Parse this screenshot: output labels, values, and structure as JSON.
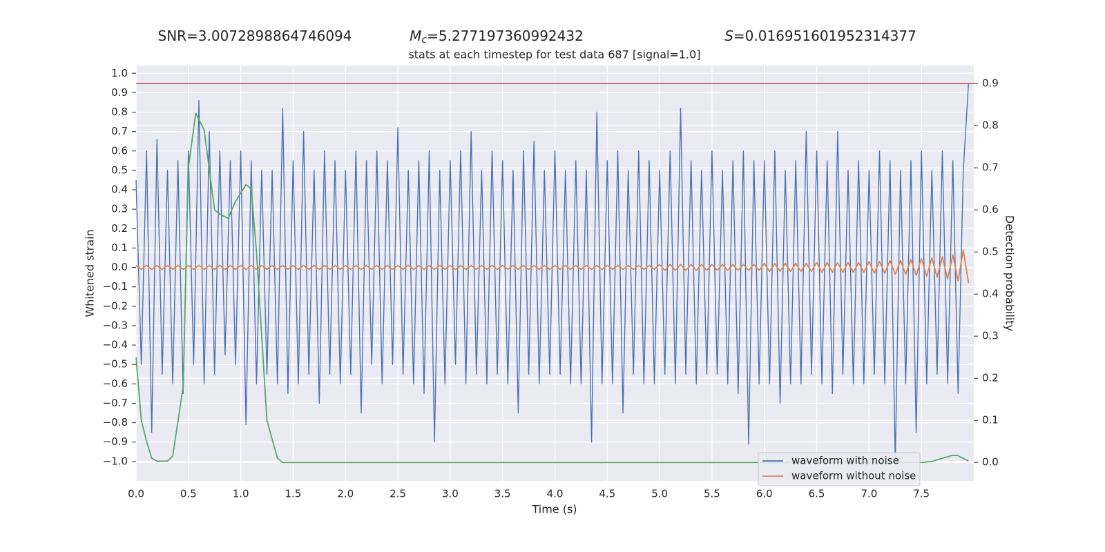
{
  "chart_data": {
    "type": "line",
    "header": [
      {
        "text": "SNR=3.0072898864746094"
      },
      {
        "symbol": "M",
        "subscript": "c",
        "text": "=5.277197360992432"
      },
      {
        "symbol": "S",
        "text": "=0.016951601952314377"
      }
    ],
    "title": "stats at each timestep for test data 687 [signal=1.0]",
    "x_label": "Time (s)",
    "y_label": "Whitened strain",
    "y2_label": "Detection probability",
    "grid": true,
    "legend_loc": "lower right",
    "xlim": [
      0,
      8.0
    ],
    "ylim": [
      -1.1,
      1.04
    ],
    "y2lim": [
      -0.044,
      0.943
    ],
    "xticks": [
      {
        "value": 0,
        "label": "0.0"
      },
      0.5,
      {
        "value": 1,
        "label": "1.0"
      },
      1.5,
      {
        "value": 2,
        "label": "2.0"
      },
      2.5,
      {
        "value": 3,
        "label": "3.0"
      },
      3.5,
      {
        "value": 4,
        "label": "4.0"
      },
      4.5,
      {
        "value": 5,
        "label": "5.0"
      },
      5.5,
      {
        "value": 6,
        "label": "6.0"
      },
      6.5,
      {
        "value": 7,
        "label": "7.0"
      },
      7.5
    ],
    "yticks": [
      {
        "value": -1,
        "label": "−1.0"
      },
      {
        "value": -0.9,
        "label": "−0.9"
      },
      {
        "value": -0.8,
        "label": "−0.8"
      },
      {
        "value": -0.7,
        "label": "−0.7"
      },
      {
        "value": -0.6,
        "label": "−0.6"
      },
      {
        "value": -0.5,
        "label": "−0.5"
      },
      {
        "value": -0.4,
        "label": "−0.4"
      },
      {
        "value": -0.3,
        "label": "−0.3"
      },
      {
        "value": -0.2,
        "label": "−0.2"
      },
      {
        "value": -0.1,
        "label": "−0.1"
      },
      {
        "value": 0,
        "label": "0.0"
      },
      0.1,
      0.2,
      0.3,
      0.4,
      0.5,
      0.6,
      0.7,
      0.8,
      0.9,
      {
        "value": 1,
        "label": "1.0"
      }
    ],
    "y2ticks": [
      {
        "value": 0,
        "label": "0.0"
      },
      0.1,
      0.2,
      0.3,
      0.4,
      0.5,
      0.6,
      0.7,
      0.8,
      0.9
    ],
    "threshold": {
      "value": 0.9,
      "axis": "y2",
      "color": "#c44e52"
    },
    "x": [
      0,
      0.05,
      0.1,
      0.15,
      0.2,
      0.25,
      0.3,
      0.35,
      0.4,
      0.45,
      0.5,
      0.55,
      0.6,
      0.65,
      0.7,
      0.75,
      0.8,
      0.85,
      0.9,
      0.95,
      1,
      1.05,
      1.1,
      1.15,
      1.2,
      1.25,
      1.3,
      1.35,
      1.4,
      1.45,
      1.5,
      1.55,
      1.6,
      1.65,
      1.7,
      1.75,
      1.8,
      1.85,
      1.9,
      1.95,
      2,
      2.05,
      2.1,
      2.15,
      2.2,
      2.25,
      2.3,
      2.35,
      2.4,
      2.45,
      2.5,
      2.55,
      2.6,
      2.65,
      2.7,
      2.75,
      2.8,
      2.85,
      2.9,
      2.95,
      3,
      3.05,
      3.1,
      3.15,
      3.2,
      3.25,
      3.3,
      3.35,
      3.4,
      3.45,
      3.5,
      3.55,
      3.6,
      3.65,
      3.7,
      3.75,
      3.8,
      3.85,
      3.9,
      3.95,
      4,
      4.05,
      4.1,
      4.15,
      4.2,
      4.25,
      4.3,
      4.35,
      4.4,
      4.45,
      4.5,
      4.55,
      4.6,
      4.65,
      4.7,
      4.75,
      4.8,
      4.85,
      4.9,
      4.95,
      5,
      5.05,
      5.1,
      5.15,
      5.2,
      5.25,
      5.3,
      5.35,
      5.4,
      5.45,
      5.5,
      5.55,
      5.6,
      5.65,
      5.7,
      5.75,
      5.8,
      5.85,
      5.9,
      5.95,
      6,
      6.05,
      6.1,
      6.15,
      6.2,
      6.25,
      6.3,
      6.35,
      6.4,
      6.45,
      6.5,
      6.55,
      6.6,
      6.65,
      6.7,
      6.75,
      6.8,
      6.85,
      6.9,
      6.95,
      7,
      7.05,
      7.1,
      7.15,
      7.2,
      7.25,
      7.3,
      7.35,
      7.4,
      7.45,
      7.5,
      7.55,
      7.6,
      7.65,
      7.7,
      7.75,
      7.8,
      7.85,
      7.9,
      7.95
    ],
    "series": [
      {
        "name": "waveform with noise",
        "color": "#4c72b0",
        "values": [
          0.45,
          -0.5,
          0.6,
          -0.85,
          0.66,
          -0.55,
          0.5,
          -0.6,
          0.55,
          -0.65,
          0.6,
          -0.5,
          0.86,
          -0.6,
          0.7,
          -0.55,
          0.6,
          -0.45,
          0.55,
          -0.5,
          0.6,
          -0.81,
          0.55,
          -0.6,
          0.5,
          -0.55,
          0.5,
          -0.6,
          0.82,
          -0.65,
          0.55,
          -0.6,
          0.7,
          -0.55,
          0.5,
          -0.7,
          0.6,
          -0.55,
          0.55,
          -0.6,
          0.5,
          -0.55,
          0.6,
          -0.75,
          0.55,
          -0.5,
          0.6,
          -0.6,
          0.55,
          -0.5,
          0.72,
          -0.55,
          0.5,
          -0.6,
          0.55,
          -0.65,
          0.6,
          -0.9,
          0.5,
          -0.6,
          0.55,
          -0.5,
          0.6,
          -0.6,
          0.7,
          -0.55,
          0.5,
          -0.6,
          0.6,
          -0.55,
          0.55,
          -0.6,
          0.5,
          -0.75,
          0.6,
          -0.55,
          0.65,
          -0.6,
          0.5,
          -0.55,
          0.6,
          -0.55,
          0.5,
          -0.6,
          0.55,
          -0.6,
          0.5,
          -0.9,
          0.8,
          -0.6,
          0.55,
          -0.6,
          0.6,
          -0.75,
          0.5,
          -0.55,
          0.6,
          -0.6,
          0.55,
          -0.6,
          0.5,
          -0.55,
          0.6,
          -0.6,
          0.82,
          -0.55,
          0.55,
          -0.6,
          0.5,
          -0.55,
          0.6,
          -0.55,
          0.5,
          -0.6,
          0.55,
          -0.65,
          0.6,
          -0.91,
          0.55,
          -0.6,
          0.55,
          -0.6,
          0.6,
          -0.7,
          0.5,
          -0.6,
          0.55,
          -0.6,
          0.7,
          -0.55,
          0.6,
          -0.6,
          0.55,
          -0.65,
          0.7,
          -0.55,
          0.5,
          -0.6,
          0.55,
          -0.6,
          0.5,
          -0.55,
          0.6,
          -0.6,
          0.55,
          -1.0,
          0.5,
          -0.6,
          0.55,
          -0.85,
          0.6,
          -0.6,
          0.5,
          -0.55,
          0.6,
          -0.6,
          0.55,
          -0.65,
          0.5,
          0.95
        ]
      },
      {
        "name": "waveform without noise",
        "color": "#dd8452",
        "values": [
          0.01,
          -0.01,
          0.01,
          -0.01,
          0.01,
          -0.01,
          0.01,
          -0.01,
          0.01,
          -0.01,
          0.01,
          -0.01,
          0.01,
          -0.01,
          0.01,
          -0.01,
          0.01,
          -0.01,
          0.01,
          -0.01,
          0.01,
          -0.01,
          0.01,
          -0.01,
          0.01,
          -0.01,
          0.01,
          -0.01,
          0.01,
          -0.01,
          0.01,
          -0.01,
          0.01,
          -0.01,
          0.01,
          -0.01,
          0.01,
          -0.01,
          0.01,
          -0.01,
          0.01,
          -0.01,
          0.01,
          -0.01,
          0.01,
          -0.01,
          0.01,
          -0.01,
          0.01,
          -0.01,
          0.01,
          -0.01,
          0.01,
          -0.01,
          0.01,
          -0.01,
          0.01,
          -0.01,
          0.01,
          -0.01,
          0.01,
          -0.01,
          0.01,
          -0.01,
          0.01,
          -0.01,
          0.01,
          -0.01,
          0.01,
          -0.01,
          0.01,
          -0.01,
          0.01,
          -0.01,
          0.01,
          -0.01,
          0.01,
          -0.01,
          0.01,
          -0.01,
          0.01,
          -0.01,
          0.01,
          -0.01,
          0.01,
          -0.01,
          0.01,
          -0.01,
          0.01,
          -0.01,
          0.01,
          -0.01,
          0.01,
          -0.01,
          0.01,
          -0.01,
          0.01,
          -0.01,
          0.01,
          -0.01,
          0.015,
          -0.015,
          0.015,
          -0.015,
          0.015,
          -0.015,
          0.015,
          -0.015,
          0.015,
          -0.015,
          0.015,
          -0.015,
          0.015,
          -0.015,
          0.015,
          -0.015,
          0.015,
          -0.015,
          0.015,
          -0.015,
          0.02,
          -0.02,
          0.02,
          -0.02,
          0.02,
          -0.02,
          0.02,
          -0.02,
          0.02,
          -0.02,
          0.025,
          -0.025,
          0.025,
          -0.025,
          0.025,
          -0.025,
          0.025,
          -0.025,
          0.025,
          -0.025,
          0.03,
          -0.03,
          0.03,
          -0.03,
          0.035,
          -0.035,
          0.035,
          -0.035,
          0.04,
          -0.04,
          0.045,
          -0.045,
          0.05,
          -0.05,
          0.055,
          -0.06,
          0.065,
          -0.07,
          0.09,
          -0.08
        ]
      },
      {
        "color": "#55a868",
        "axis": "y2",
        "x": [
          0,
          0.05,
          0.1,
          0.15,
          0.2,
          0.3,
          0.35,
          0.45,
          0.5,
          0.57,
          0.65,
          0.75,
          0.8,
          0.88,
          0.95,
          1,
          1.05,
          1.1,
          1.15,
          1.25,
          1.35,
          1.4,
          1.45,
          1.5,
          7.5,
          7.6,
          7.7,
          7.8,
          7.85,
          7.95
        ],
        "values": [
          0.25,
          0.1,
          0.05,
          0.01,
          0.003,
          0.003,
          0.015,
          0.18,
          0.7,
          0.83,
          0.79,
          0.6,
          0.59,
          0.58,
          0.62,
          0.64,
          0.66,
          0.65,
          0.5,
          0.1,
          0.01,
          0,
          0,
          0,
          0,
          0.002,
          0.01,
          0.017,
          0.016,
          0.003
        ]
      }
    ]
  }
}
